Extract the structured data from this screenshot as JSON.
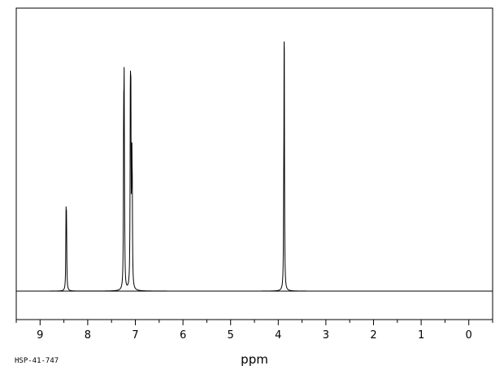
{
  "chart_data": {
    "type": "line",
    "title": "",
    "xlabel": "ppm",
    "ylabel": "",
    "sample_id": "HSP-41-747",
    "xlim": [
      9.5,
      -0.5
    ],
    "x_reversed": true,
    "grid": false,
    "tick_labels": [
      "9",
      "8",
      "7",
      "6",
      "5",
      "4",
      "3",
      "2",
      "1",
      "0"
    ],
    "tick_values": [
      9,
      8,
      7,
      6,
      5,
      4,
      3,
      2,
      1,
      0
    ],
    "minor_tick_values": [
      9.5,
      8.5,
      7.5,
      6.5,
      5.5,
      4.5,
      3.5,
      2.5,
      1.5,
      0.5,
      -0.5
    ],
    "ylim": [
      0,
      1.0
    ],
    "peaks": [
      {
        "ppm": 8.455,
        "height": 0.26
      },
      {
        "ppm": 8.445,
        "height": 0.24
      },
      {
        "ppm": 7.245,
        "height": 0.56
      },
      {
        "ppm": 7.235,
        "height": 0.69
      },
      {
        "ppm": 7.225,
        "height": 0.11
      },
      {
        "ppm": 7.105,
        "height": 0.67
      },
      {
        "ppm": 7.095,
        "height": 0.64
      },
      {
        "ppm": 7.075,
        "height": 0.45
      },
      {
        "ppm": 7.065,
        "height": 0.31
      },
      {
        "ppm": 3.875,
        "height": 1.0
      },
      {
        "ppm": 3.885,
        "height": 0.2
      }
    ]
  }
}
